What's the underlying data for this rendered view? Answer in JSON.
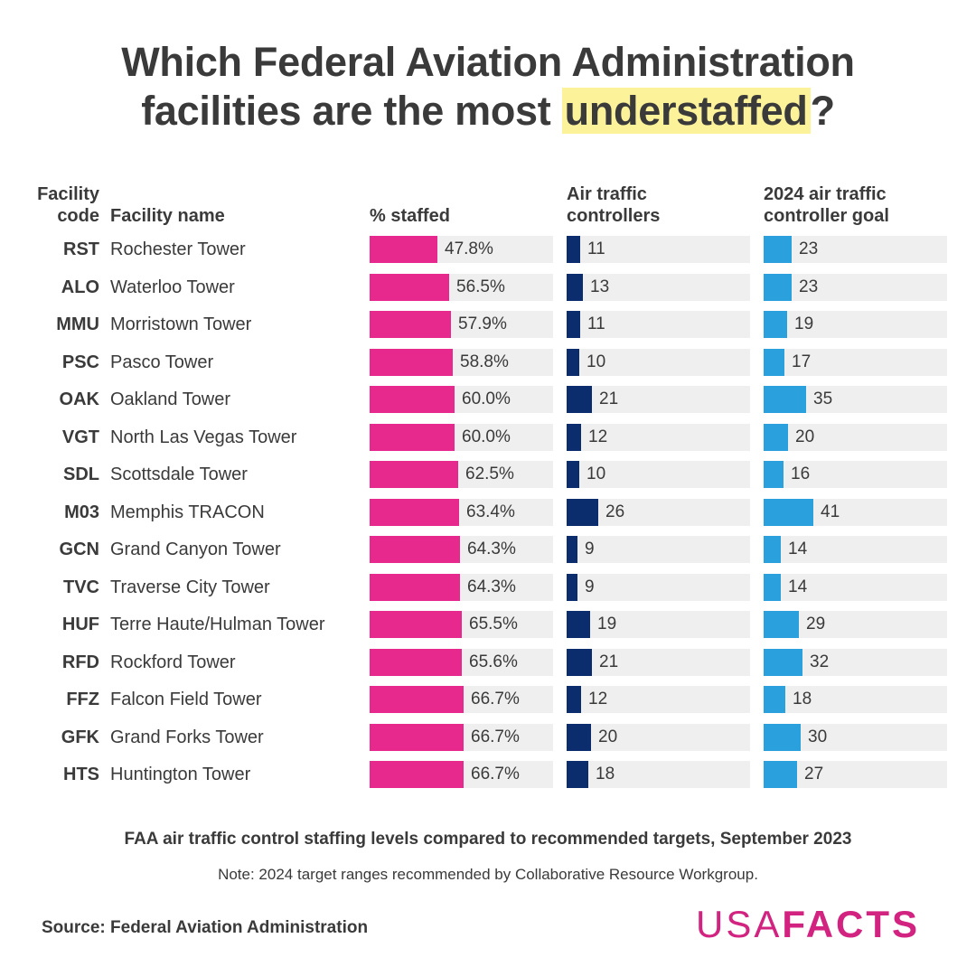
{
  "title": {
    "line1": "Which Federal Aviation Administration",
    "line2_pre": "facilities are the most ",
    "line2_highlight": "understaffed",
    "line2_post": "?"
  },
  "headers": {
    "code_line1": "Facility",
    "code_line2": "code",
    "name": "Facility name",
    "pct": "% staffed",
    "atc_line1": "Air traffic",
    "atc_line2": "controllers",
    "goal_line1": "2024 air traffic",
    "goal_line2": "controller goal"
  },
  "chart_data": {
    "type": "table",
    "columns": [
      "Facility code",
      "Facility name",
      "% staffed",
      "Air traffic controllers",
      "2024 air traffic controller goal"
    ],
    "rows": [
      {
        "code": "RST",
        "name": "Rochester Tower",
        "pct": 47.8,
        "pct_label": "47.8%",
        "atc": 11,
        "goal": 23
      },
      {
        "code": "ALO",
        "name": "Waterloo Tower",
        "pct": 56.5,
        "pct_label": "56.5%",
        "atc": 13,
        "goal": 23
      },
      {
        "code": "MMU",
        "name": "Morristown Tower",
        "pct": 57.9,
        "pct_label": "57.9%",
        "atc": 11,
        "goal": 19
      },
      {
        "code": "PSC",
        "name": "Pasco Tower",
        "pct": 58.8,
        "pct_label": "58.8%",
        "atc": 10,
        "goal": 17
      },
      {
        "code": "OAK",
        "name": "Oakland Tower",
        "pct": 60.0,
        "pct_label": "60.0%",
        "atc": 21,
        "goal": 35
      },
      {
        "code": "VGT",
        "name": "North Las Vegas Tower",
        "pct": 60.0,
        "pct_label": "60.0%",
        "atc": 12,
        "goal": 20
      },
      {
        "code": "SDL",
        "name": "Scottsdale Tower",
        "pct": 62.5,
        "pct_label": "62.5%",
        "atc": 10,
        "goal": 16
      },
      {
        "code": "M03",
        "name": "Memphis TRACON",
        "pct": 63.4,
        "pct_label": "63.4%",
        "atc": 26,
        "goal": 41
      },
      {
        "code": "GCN",
        "name": "Grand Canyon Tower",
        "pct": 64.3,
        "pct_label": "64.3%",
        "atc": 9,
        "goal": 14
      },
      {
        "code": "TVC",
        "name": "Traverse City Tower",
        "pct": 64.3,
        "pct_label": "64.3%",
        "atc": 9,
        "goal": 14
      },
      {
        "code": "HUF",
        "name": "Terre Haute/Hulman Tower",
        "pct": 65.5,
        "pct_label": "65.5%",
        "atc": 19,
        "goal": 29
      },
      {
        "code": "RFD",
        "name": "Rockford Tower",
        "pct": 65.6,
        "pct_label": "65.6%",
        "atc": 21,
        "goal": 32
      },
      {
        "code": "FFZ",
        "name": "Falcon Field Tower",
        "pct": 66.7,
        "pct_label": "66.7%",
        "atc": 12,
        "goal": 18
      },
      {
        "code": "GFK",
        "name": "Grand Forks Tower",
        "pct": 66.7,
        "pct_label": "66.7%",
        "atc": 20,
        "goal": 30
      },
      {
        "code": "HTS",
        "name": "Huntington Tower",
        "pct": 66.7,
        "pct_label": "66.7%",
        "atc": 18,
        "goal": 27
      }
    ],
    "pct_max": 130,
    "count_max": 150
  },
  "colors": {
    "pct": "#e7288c",
    "atc": "#0b2d6e",
    "goal": "#2aa0dc",
    "track": "#efefef",
    "highlight": "#fcf29a",
    "logo": "#d1237f"
  },
  "footer": {
    "caption": "FAA air traffic control staffing levels compared to recommended targets, September 2023",
    "note": "Note: 2024 target ranges recommended by Collaborative Resource Workgroup.",
    "source": "Source: Federal Aviation Administration"
  },
  "logo": {
    "part1": "USA",
    "part2": "FACTS"
  }
}
